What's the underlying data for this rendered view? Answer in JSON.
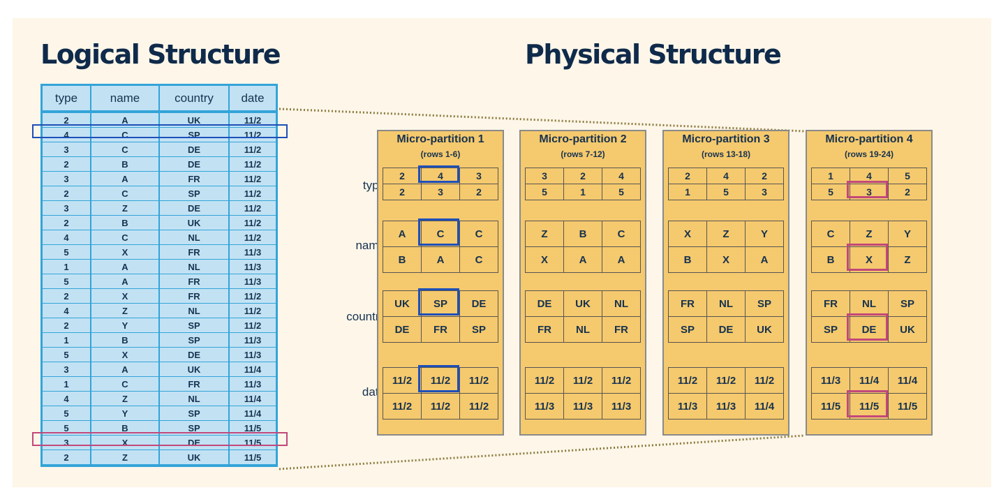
{
  "titles": {
    "logical": "Logical Structure",
    "physical": "Physical Structure"
  },
  "logical_table": {
    "headers": [
      "type",
      "name",
      "country",
      "date"
    ],
    "rows": [
      [
        "2",
        "A",
        "UK",
        "11/2"
      ],
      [
        "4",
        "C",
        "SP",
        "11/2"
      ],
      [
        "3",
        "C",
        "DE",
        "11/2"
      ],
      [
        "2",
        "B",
        "DE",
        "11/2"
      ],
      [
        "3",
        "A",
        "FR",
        "11/2"
      ],
      [
        "2",
        "C",
        "SP",
        "11/2"
      ],
      [
        "3",
        "Z",
        "DE",
        "11/2"
      ],
      [
        "2",
        "B",
        "UK",
        "11/2"
      ],
      [
        "4",
        "C",
        "NL",
        "11/2"
      ],
      [
        "5",
        "X",
        "FR",
        "11/3"
      ],
      [
        "1",
        "A",
        "NL",
        "11/3"
      ],
      [
        "5",
        "A",
        "FR",
        "11/3"
      ],
      [
        "2",
        "X",
        "FR",
        "11/2"
      ],
      [
        "4",
        "Z",
        "NL",
        "11/2"
      ],
      [
        "2",
        "Y",
        "SP",
        "11/2"
      ],
      [
        "1",
        "B",
        "SP",
        "11/3"
      ],
      [
        "5",
        "X",
        "DE",
        "11/3"
      ],
      [
        "3",
        "A",
        "UK",
        "11/4"
      ],
      [
        "1",
        "C",
        "FR",
        "11/3"
      ],
      [
        "4",
        "Z",
        "NL",
        "11/4"
      ],
      [
        "5",
        "Y",
        "SP",
        "11/4"
      ],
      [
        "5",
        "B",
        "SP",
        "11/5"
      ],
      [
        "3",
        "X",
        "DE",
        "11/5"
      ],
      [
        "2",
        "Z",
        "UK",
        "11/5"
      ]
    ],
    "highlight_blue_row": 1,
    "highlight_pink_row": 22
  },
  "row_labels": [
    "type",
    "name",
    "country",
    "date"
  ],
  "partitions": [
    {
      "title": "Micro-partition 1",
      "rows": "(rows 1-6)",
      "type": [
        [
          "2",
          "4",
          "3"
        ],
        [
          "2",
          "3",
          "2"
        ]
      ],
      "name": [
        [
          "A",
          "C",
          "C"
        ],
        [
          "B",
          "A",
          "C"
        ]
      ],
      "country": [
        [
          "UK",
          "SP",
          "DE"
        ],
        [
          "DE",
          "FR",
          "SP"
        ]
      ],
      "date": [
        [
          "11/2",
          "11/2",
          "11/2"
        ],
        [
          "11/2",
          "11/2",
          "11/2"
        ]
      ]
    },
    {
      "title": "Micro-partition 2",
      "rows": "(rows 7-12)",
      "type": [
        [
          "3",
          "2",
          "4"
        ],
        [
          "5",
          "1",
          "5"
        ]
      ],
      "name": [
        [
          "Z",
          "B",
          "C"
        ],
        [
          "X",
          "A",
          "A"
        ]
      ],
      "country": [
        [
          "DE",
          "UK",
          "NL"
        ],
        [
          "FR",
          "NL",
          "FR"
        ]
      ],
      "date": [
        [
          "11/2",
          "11/2",
          "11/2"
        ],
        [
          "11/3",
          "11/3",
          "11/3"
        ]
      ]
    },
    {
      "title": "Micro-partition 3",
      "rows": "(rows 13-18)",
      "type": [
        [
          "2",
          "4",
          "2"
        ],
        [
          "1",
          "5",
          "3"
        ]
      ],
      "name": [
        [
          "X",
          "Z",
          "Y"
        ],
        [
          "B",
          "X",
          "A"
        ]
      ],
      "country": [
        [
          "FR",
          "NL",
          "SP"
        ],
        [
          "SP",
          "DE",
          "UK"
        ]
      ],
      "date": [
        [
          "11/2",
          "11/2",
          "11/2"
        ],
        [
          "11/3",
          "11/3",
          "11/4"
        ]
      ]
    },
    {
      "title": "Micro-partition 4",
      "rows": "(rows 19-24)",
      "type": [
        [
          "1",
          "4",
          "5"
        ],
        [
          "5",
          "3",
          "2"
        ]
      ],
      "name": [
        [
          "C",
          "Z",
          "Y"
        ],
        [
          "B",
          "X",
          "Z"
        ]
      ],
      "country": [
        [
          "FR",
          "NL",
          "SP"
        ],
        [
          "SP",
          "DE",
          "UK"
        ]
      ],
      "date": [
        [
          "11/3",
          "11/4",
          "11/4"
        ],
        [
          "11/5",
          "11/5",
          "11/5"
        ]
      ]
    }
  ],
  "colors": {
    "blue_highlight": "#1e4fb8",
    "pink_highlight": "#c2487a",
    "table_border": "#33a4d8",
    "partition_fill": "#f5c96d"
  }
}
